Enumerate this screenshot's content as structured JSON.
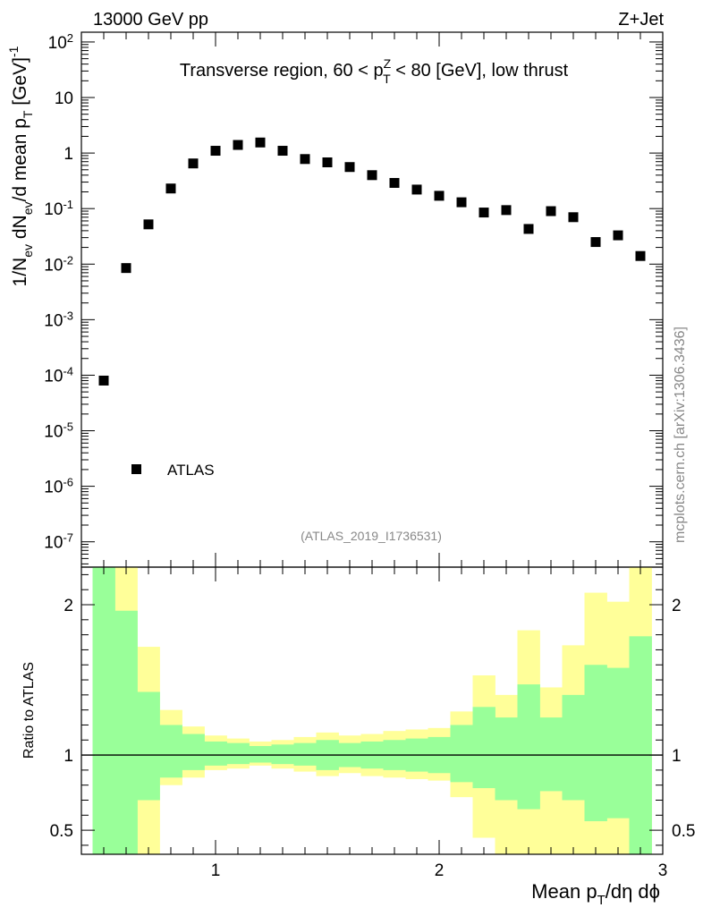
{
  "header": {
    "energy_label": "13000 GeV pp",
    "process_label": "Z+Jet",
    "side_label": "mcplots.cern.ch [arXiv:1306.3436]"
  },
  "chart_data": [
    {
      "type": "scatter",
      "role": "main",
      "title": "Transverse region, 60 < p_T^Z < 80 [GeV], low thrust",
      "ylabel": "1/N_ev dN_ev/d mean p_T [GeV]^-1",
      "xlabel": "",
      "yscale": "log",
      "xlim": [
        0.4,
        3.0
      ],
      "ylim": [
        3.5e-08,
        150
      ],
      "y_ticks": [
        {
          "value": 1e-07,
          "label": "10^-7"
        },
        {
          "value": 1e-06,
          "label": "10^-6"
        },
        {
          "value": 1e-05,
          "label": "10^-5"
        },
        {
          "value": 0.0001,
          "label": "10^-4"
        },
        {
          "value": 0.001,
          "label": "10^-3"
        },
        {
          "value": 0.01,
          "label": "10^-2"
        },
        {
          "value": 0.1,
          "label": "10^-1"
        },
        {
          "value": 1,
          "label": "1"
        },
        {
          "value": 10,
          "label": "10"
        },
        {
          "value": 100,
          "label": "10^2"
        }
      ],
      "legend": {
        "label": "ATLAS",
        "position": "bottom-left"
      },
      "annotation": "(ATLAS_2019_I1736531)",
      "series": [
        {
          "name": "ATLAS",
          "marker": "square",
          "color": "#000000",
          "x": [
            0.5,
            0.6,
            0.7,
            0.8,
            0.9,
            1.0,
            1.1,
            1.2,
            1.3,
            1.4,
            1.5,
            1.6,
            1.7,
            1.8,
            1.9,
            2.0,
            2.1,
            2.2,
            2.3,
            2.4,
            2.5,
            2.6,
            2.7,
            2.8,
            2.9
          ],
          "y": [
            8e-05,
            0.0085,
            0.052,
            0.23,
            0.65,
            1.1,
            1.4,
            1.55,
            1.1,
            0.78,
            0.68,
            0.56,
            0.4,
            0.29,
            0.22,
            0.17,
            0.13,
            0.085,
            0.094,
            0.043,
            0.09,
            0.07,
            0.025,
            0.033,
            0.014
          ]
        }
      ]
    },
    {
      "type": "area",
      "role": "ratio",
      "ylabel": "Ratio to ATLAS",
      "xlabel": "Mean p_T/dη dϕ",
      "xlim": [
        0.4,
        3.0
      ],
      "ylim": [
        0.34,
        2.25
      ],
      "x_ticks": [
        {
          "value": 1,
          "label": "1"
        },
        {
          "value": 2,
          "label": "2"
        },
        {
          "value": 3,
          "label": "3"
        }
      ],
      "y_ticks": [
        {
          "value": 0.5,
          "label": "0.5"
        },
        {
          "value": 1,
          "label": "1"
        },
        {
          "value": 2,
          "label": "2"
        }
      ],
      "reference_line": 1.0,
      "bins": [
        [
          0.45,
          0.55
        ],
        [
          0.55,
          0.65
        ],
        [
          0.65,
          0.75
        ],
        [
          0.75,
          0.85
        ],
        [
          0.85,
          0.95
        ],
        [
          0.95,
          1.05
        ],
        [
          1.05,
          1.15
        ],
        [
          1.15,
          1.25
        ],
        [
          1.25,
          1.35
        ],
        [
          1.35,
          1.45
        ],
        [
          1.45,
          1.55
        ],
        [
          1.55,
          1.65
        ],
        [
          1.65,
          1.75
        ],
        [
          1.75,
          1.85
        ],
        [
          1.85,
          1.95
        ],
        [
          1.95,
          2.05
        ],
        [
          2.05,
          2.15
        ],
        [
          2.15,
          2.25
        ],
        [
          2.25,
          2.35
        ],
        [
          2.35,
          2.45
        ],
        [
          2.45,
          2.55
        ],
        [
          2.55,
          2.65
        ],
        [
          2.65,
          2.75
        ],
        [
          2.75,
          2.85
        ],
        [
          2.85,
          2.95
        ]
      ],
      "bands": [
        {
          "name": "total uncertainty",
          "color": "#ffff99",
          "low": [
            0.3,
            0.3,
            0.3,
            0.8,
            0.85,
            0.9,
            0.91,
            0.93,
            0.91,
            0.89,
            0.86,
            0.88,
            0.86,
            0.85,
            0.84,
            0.83,
            0.72,
            0.45,
            0.3,
            0.3,
            0.3,
            0.3,
            0.3,
            0.3,
            0.3
          ],
          "high": [
            2.3,
            2.3,
            1.72,
            1.3,
            1.19,
            1.13,
            1.11,
            1.09,
            1.1,
            1.12,
            1.15,
            1.13,
            1.14,
            1.16,
            1.17,
            1.18,
            1.29,
            1.53,
            1.4,
            1.83,
            1.45,
            1.73,
            2.08,
            2.02,
            2.3
          ]
        },
        {
          "name": "statistical uncertainty",
          "color": "#99ff99",
          "low": [
            0.3,
            0.3,
            0.7,
            0.85,
            0.9,
            0.93,
            0.94,
            0.95,
            0.94,
            0.93,
            0.9,
            0.92,
            0.91,
            0.9,
            0.89,
            0.88,
            0.82,
            0.78,
            0.7,
            0.64,
            0.76,
            0.7,
            0.56,
            0.58,
            0.3
          ],
          "high": [
            2.3,
            1.96,
            1.42,
            1.2,
            1.14,
            1.09,
            1.08,
            1.06,
            1.07,
            1.08,
            1.1,
            1.08,
            1.09,
            1.1,
            1.11,
            1.12,
            1.2,
            1.32,
            1.25,
            1.47,
            1.25,
            1.4,
            1.6,
            1.58,
            1.79
          ]
        }
      ]
    }
  ]
}
